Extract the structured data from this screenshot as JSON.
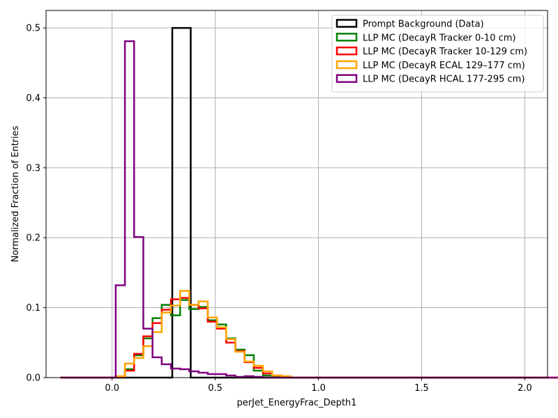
{
  "chart_data": {
    "type": "histogram-step",
    "xlabel": "perJet_EnergyFrac_Depth1",
    "ylabel": "Normalized Fraction of Entries",
    "xlim": [
      -0.32,
      2.11
    ],
    "ylim": [
      0,
      0.525
    ],
    "xticks": [
      0.0,
      0.5,
      1.0,
      1.5,
      2.0
    ],
    "xtick_labels": [
      "0.0",
      "0.5",
      "1.0",
      "1.5",
      "2.0"
    ],
    "yticks": [
      0.0,
      0.1,
      0.2,
      0.3,
      0.4,
      0.5
    ],
    "ytick_labels": [
      "0.0",
      "0.1",
      "0.2",
      "0.3",
      "0.4",
      "0.5"
    ],
    "grid": true,
    "legend_position": "top-right",
    "bin_start": -0.25,
    "bin_width": 0.0446,
    "series": [
      {
        "name": "Prompt Background (Data)",
        "color": "#000000",
        "stops": [
          [
            -0.25,
            0.0
          ],
          [
            0.2918,
            0.5
          ],
          [
            0.381,
            0.0
          ],
          [
            2.0,
            0.0
          ]
        ]
      },
      {
        "name": "LLP MC (DecayR Tracker 0-10 cm)",
        "color": "#008000",
        "values": [
          0,
          0,
          0,
          0,
          0,
          0,
          0.001,
          0.012,
          0.032,
          0.056,
          0.085,
          0.104,
          0.089,
          0.111,
          0.098,
          0.101,
          0.082,
          0.076,
          0.056,
          0.04,
          0.032,
          0.01,
          0.003,
          0.002,
          0.0005,
          0,
          0,
          0,
          0,
          0,
          0,
          0,
          0,
          0,
          0,
          0,
          0,
          0,
          0,
          0,
          0,
          0,
          0,
          0,
          0,
          0,
          0,
          0,
          0,
          0,
          0,
          0,
          0,
          0,
          0,
          0,
          0,
          0,
          0,
          0,
          0,
          0,
          0,
          0,
          0
        ]
      },
      {
        "name": "LLP MC (DecayR Tracker 10-129 cm)",
        "color": "#ff0000",
        "values": [
          0,
          0,
          0,
          0,
          0,
          0,
          0.001,
          0.01,
          0.034,
          0.059,
          0.078,
          0.097,
          0.112,
          0.114,
          0.104,
          0.099,
          0.08,
          0.07,
          0.05,
          0.038,
          0.022,
          0.014,
          0.006,
          0.003,
          0.001,
          0,
          0,
          0,
          0,
          0,
          0,
          0,
          0,
          0,
          0,
          0,
          0,
          0,
          0,
          0,
          0,
          0,
          0,
          0,
          0,
          0,
          0,
          0,
          0,
          0,
          0,
          0,
          0,
          0,
          0,
          0,
          0,
          0,
          0,
          0,
          0,
          0,
          0,
          0,
          0
        ]
      },
      {
        "name": "LLP MC (DecayR ECAL 129–177 cm)",
        "color": "#ffa500",
        "values": [
          0,
          0,
          0,
          0,
          0,
          0,
          0.002,
          0.02,
          0.028,
          0.045,
          0.065,
          0.093,
          0.103,
          0.124,
          0.104,
          0.109,
          0.086,
          0.072,
          0.055,
          0.037,
          0.023,
          0.017,
          0.009,
          0.003,
          0.002,
          0,
          0,
          0,
          0,
          0,
          0,
          0,
          0,
          0,
          0,
          0,
          0,
          0,
          0,
          0,
          0,
          0,
          0,
          0,
          0,
          0,
          0,
          0,
          0,
          0,
          0,
          0,
          0,
          0,
          0,
          0,
          0,
          0,
          0,
          0,
          0,
          0,
          0,
          0,
          0
        ]
      },
      {
        "name": "LLP MC (DecayR HCAL 177-295 cm)",
        "color": "#800080",
        "values": [
          0,
          0,
          0,
          0,
          0,
          0,
          0.132,
          0.481,
          0.201,
          0.07,
          0.029,
          0.019,
          0.013,
          0.012,
          0.009,
          0.007,
          0.005,
          0.005,
          0.003,
          0.001,
          0.002,
          0.001,
          0,
          0,
          0,
          0,
          0,
          0,
          0,
          0,
          0,
          0,
          0,
          0,
          0,
          0,
          0,
          0,
          0,
          0,
          0,
          0,
          0,
          0,
          0,
          0,
          0,
          0,
          0,
          0,
          0,
          0,
          0,
          0,
          0,
          0,
          0,
          0,
          0,
          0,
          0,
          0,
          0,
          0,
          0
        ]
      }
    ]
  }
}
